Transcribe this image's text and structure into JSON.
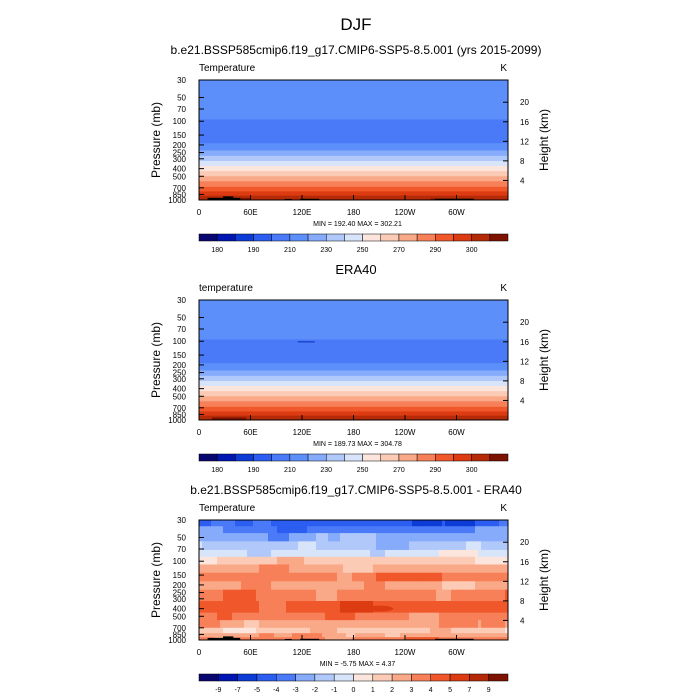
{
  "figure": {
    "title": "DJF",
    "colors": {
      "temp_palette": [
        "#08066f",
        "#0016b3",
        "#0c3bd6",
        "#2a5df0",
        "#4a7af7",
        "#5d8ffb",
        "#86abfb",
        "#b0c9fa",
        "#d8e4fa",
        "#fbe5dc",
        "#fbcbb6",
        "#f9a988",
        "#f78058",
        "#f0572b",
        "#dd3b11",
        "#b52a07",
        "#7c1200"
      ],
      "diff_palette": [
        "#08066f",
        "#0016b3",
        "#0c3bd6",
        "#2a5df0",
        "#4a7af7",
        "#86abfb",
        "#b0c9fa",
        "#d8e4fa",
        "#fbe5dc",
        "#fbcbb6",
        "#f9a988",
        "#f78058",
        "#f0572b",
        "#dd3b11",
        "#b52a07",
        "#7c1200"
      ],
      "topography": "#000000"
    }
  },
  "chart_data": [
    {
      "type": "heatmap",
      "id": "model",
      "title": "b.e21.BSSP585cmip6.f19_g17.CMIP6-SSP5-8.5.001 (yrs 2015-2099)",
      "left_label": "Temperature",
      "right_label": "K",
      "ylabel": "Pressure (mb)",
      "ylabel_right": "Height (km)",
      "x_ticks": [
        "0",
        "60E",
        "120E",
        "180",
        "120W",
        "60W"
      ],
      "x_tick_values": [
        0,
        60,
        120,
        180,
        240,
        300
      ],
      "x_range": [
        0,
        360
      ],
      "y_ticks": [
        "30",
        "50",
        "70",
        "100",
        "150",
        "200",
        "250",
        "300",
        "400",
        "500",
        "700",
        "850",
        "1000"
      ],
      "y_tick_values": [
        30,
        50,
        70,
        100,
        150,
        200,
        250,
        300,
        400,
        500,
        700,
        850,
        1000
      ],
      "y_range": [
        30,
        1000
      ],
      "height_ticks": [
        "20",
        "16",
        "12",
        "8",
        "4"
      ],
      "height_tick_values": [
        20,
        16,
        12,
        8,
        4
      ],
      "stats": "MIN = 192.40  MAX = 302.21",
      "colorbar": {
        "labels": [
          "180",
          "190",
          "210",
          "230",
          "250",
          "270",
          "290",
          "300"
        ]
      }
    },
    {
      "type": "heatmap",
      "id": "obs",
      "title": "ERA40",
      "left_label": "temperature",
      "right_label": "K",
      "ylabel": "Pressure (mb)",
      "ylabel_right": "Height (km)",
      "x_ticks": [
        "0",
        "60E",
        "120E",
        "180",
        "120W",
        "60W"
      ],
      "x_tick_values": [
        0,
        60,
        120,
        180,
        240,
        300
      ],
      "x_range": [
        0,
        360
      ],
      "y_ticks": [
        "30",
        "50",
        "70",
        "100",
        "150",
        "200",
        "250",
        "300",
        "400",
        "500",
        "700",
        "850",
        "1000"
      ],
      "y_tick_values": [
        30,
        50,
        70,
        100,
        150,
        200,
        250,
        300,
        400,
        500,
        700,
        850,
        1000
      ],
      "y_range": [
        30,
        1000
      ],
      "height_ticks": [
        "20",
        "16",
        "12",
        "8",
        "4"
      ],
      "height_tick_values": [
        20,
        16,
        12,
        8,
        4
      ],
      "stats": "MIN = 189.73  MAX = 304.78",
      "colorbar": {
        "labels": [
          "180",
          "190",
          "210",
          "230",
          "250",
          "270",
          "290",
          "300"
        ]
      }
    },
    {
      "type": "heatmap",
      "id": "diff",
      "title": "b.e21.BSSP585cmip6.f19_g17.CMIP6-SSP5-8.5.001 - ERA40",
      "left_label": "Temperature",
      "right_label": "K",
      "ylabel": "Pressure (mb)",
      "ylabel_right": "Height (km)",
      "x_ticks": [
        "0",
        "60E",
        "120E",
        "180",
        "120W",
        "60W"
      ],
      "x_tick_values": [
        0,
        60,
        120,
        180,
        240,
        300
      ],
      "x_range": [
        0,
        360
      ],
      "y_ticks": [
        "30",
        "50",
        "70",
        "100",
        "150",
        "200",
        "250",
        "300",
        "400",
        "500",
        "700",
        "850",
        "1000"
      ],
      "y_tick_values": [
        30,
        50,
        70,
        100,
        150,
        200,
        250,
        300,
        400,
        500,
        700,
        850,
        1000
      ],
      "y_range": [
        30,
        1000
      ],
      "height_ticks": [
        "20",
        "16",
        "12",
        "8",
        "4"
      ],
      "height_tick_values": [
        20,
        16,
        12,
        8,
        4
      ],
      "stats": "MIN =  -5.75  MAX =   4.37",
      "colorbar": {
        "labels": [
          "-9",
          "-7",
          "-5",
          "-4",
          "-3",
          "-2",
          "-1",
          "0",
          "1",
          "2",
          "3",
          "4",
          "5",
          "7",
          "9"
        ]
      }
    }
  ]
}
